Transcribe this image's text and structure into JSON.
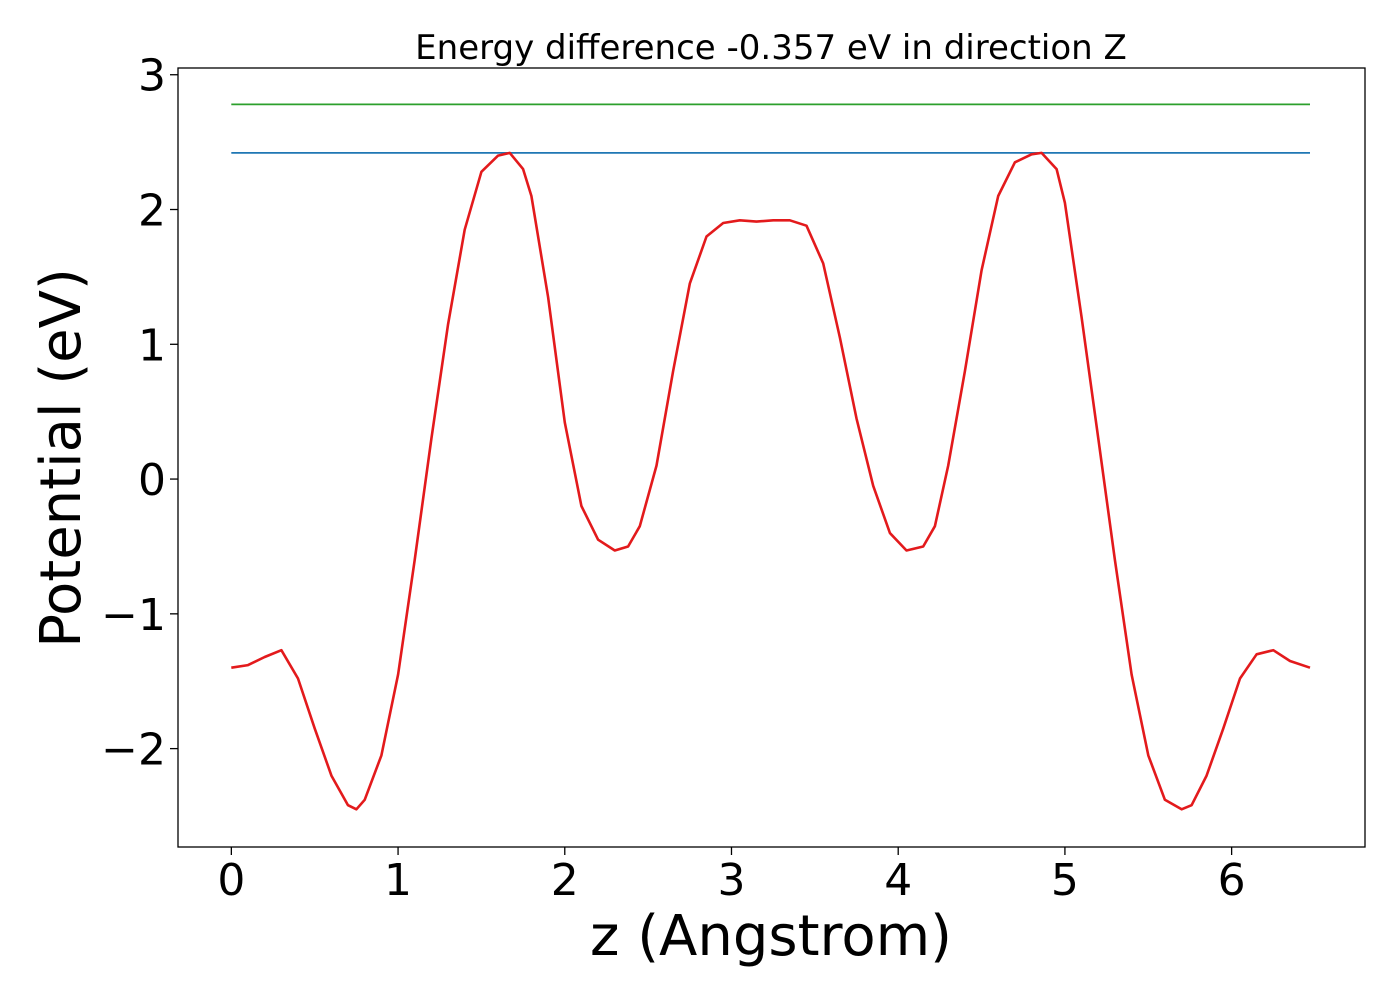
{
  "chart_data": {
    "type": "line",
    "title": "Energy difference -0.357 eV in direction Z",
    "xlabel": "z (Angstrom)",
    "ylabel": "Potential (eV)",
    "xlim": [
      -0.32,
      6.8
    ],
    "ylim": [
      -2.73,
      3.05
    ],
    "xticks": [
      0,
      1,
      2,
      3,
      4,
      5,
      6
    ],
    "xtick_labels": [
      "0",
      "1",
      "2",
      "3",
      "4",
      "5",
      "6"
    ],
    "yticks": [
      -2,
      -1,
      0,
      1,
      2,
      3
    ],
    "ytick_labels": [
      "−2",
      "−1",
      "0",
      "1",
      "2",
      "3"
    ],
    "grid": false,
    "legend": "none",
    "series": [
      {
        "color": "#2ca02c",
        "x": [
          0,
          6.47
        ],
        "y": [
          2.78,
          2.78
        ]
      },
      {
        "color": "#1f77b4",
        "x": [
          0,
          6.47
        ],
        "y": [
          2.42,
          2.42
        ]
      },
      {
        "color": "#e31a1c",
        "x": [
          0,
          0.1,
          0.2,
          0.3,
          0.4,
          0.5,
          0.6,
          0.7,
          0.75,
          0.8,
          0.9,
          1.0,
          1.1,
          1.2,
          1.3,
          1.4,
          1.5,
          1.6,
          1.67,
          1.75,
          1.8,
          1.9,
          2.0,
          2.1,
          2.2,
          2.3,
          2.38,
          2.45,
          2.55,
          2.65,
          2.75,
          2.85,
          2.95,
          3.05,
          3.15,
          3.25,
          3.35,
          3.45,
          3.55,
          3.65,
          3.75,
          3.85,
          3.95,
          4.05,
          4.15,
          4.22,
          4.3,
          4.4,
          4.5,
          4.6,
          4.7,
          4.8,
          4.86,
          4.95,
          5.0,
          5.1,
          5.2,
          5.3,
          5.4,
          5.5,
          5.6,
          5.7,
          5.76,
          5.85,
          5.95,
          6.05,
          6.15,
          6.25,
          6.35,
          6.47
        ],
        "y": [
          -1.4,
          -1.38,
          -1.32,
          -1.27,
          -1.48,
          -1.85,
          -2.2,
          -2.42,
          -2.45,
          -2.38,
          -2.05,
          -1.45,
          -0.6,
          0.3,
          1.15,
          1.85,
          2.28,
          2.4,
          2.42,
          2.3,
          2.1,
          1.35,
          0.42,
          -0.2,
          -0.45,
          -0.53,
          -0.5,
          -0.35,
          0.1,
          0.8,
          1.45,
          1.8,
          1.9,
          1.92,
          1.91,
          1.92,
          1.92,
          1.88,
          1.6,
          1.05,
          0.45,
          -0.05,
          -0.4,
          -0.53,
          -0.5,
          -0.35,
          0.1,
          0.8,
          1.55,
          2.1,
          2.35,
          2.41,
          2.42,
          2.3,
          2.05,
          1.2,
          0.3,
          -0.6,
          -1.45,
          -2.05,
          -2.38,
          -2.45,
          -2.42,
          -2.2,
          -1.85,
          -1.48,
          -1.3,
          -1.27,
          -1.35,
          -1.4
        ]
      }
    ]
  }
}
